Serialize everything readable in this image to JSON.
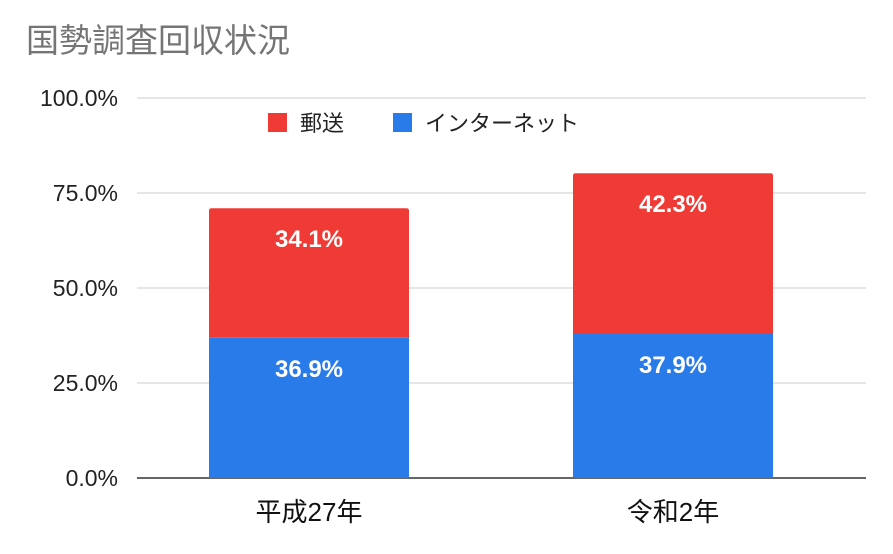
{
  "chart_data": {
    "type": "bar",
    "stacked": true,
    "title": "国勢調査回収状況",
    "categories": [
      "平成27年",
      "令和2年"
    ],
    "series": [
      {
        "name": "インターネット",
        "color": "#2a7bea",
        "values": [
          36.9,
          37.9
        ],
        "labels": [
          "36.9%",
          "37.9%"
        ]
      },
      {
        "name": "郵送",
        "color": "#f03a35",
        "values": [
          34.1,
          42.3
        ],
        "labels": [
          "34.1%",
          "42.3%"
        ]
      }
    ],
    "legend_order": [
      "郵送",
      "インターネット"
    ],
    "legend_position": "top-center",
    "ylim": [
      0,
      100
    ],
    "yticks": [
      0,
      25,
      50,
      75,
      100
    ],
    "ytick_labels": [
      "0.0%",
      "25.0%",
      "50.0%",
      "75.0%",
      "100.0%"
    ],
    "grid": true,
    "xlabel": "",
    "ylabel": ""
  }
}
